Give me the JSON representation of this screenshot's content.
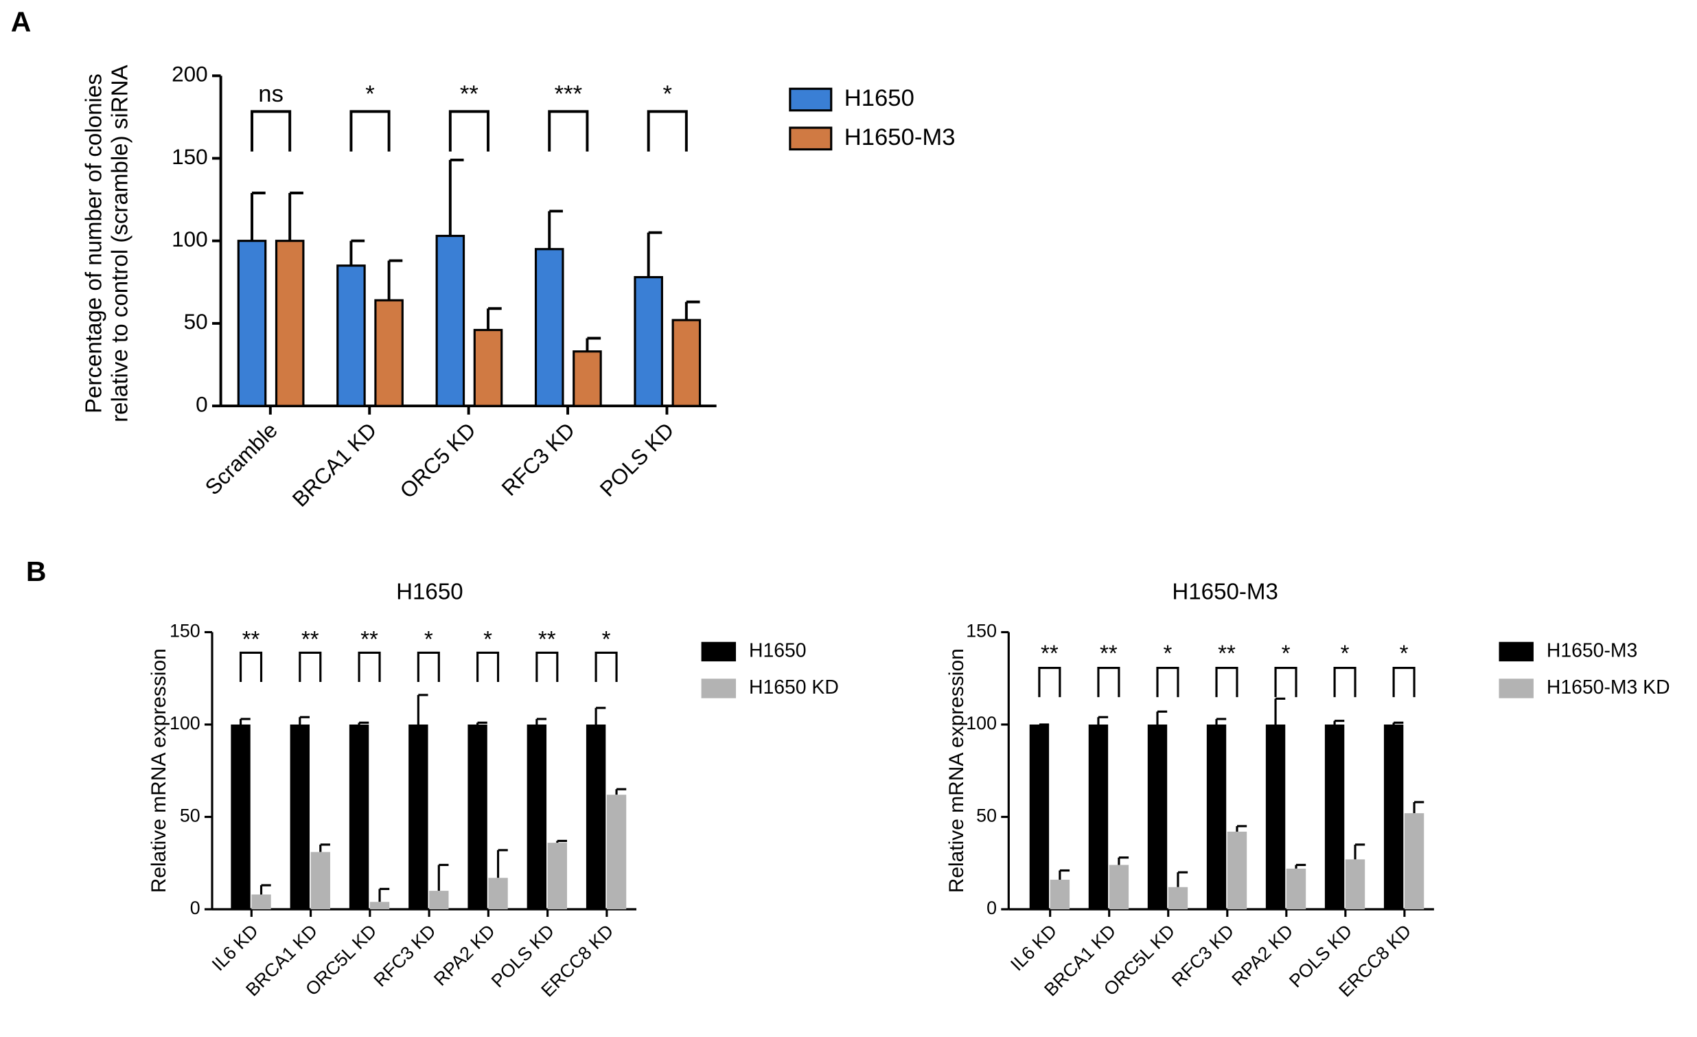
{
  "chart_data": [
    {
      "type": "bar",
      "panel": "A",
      "ylabel": [
        "Percentage of number of colonies",
        "relative to control (scramble) siRNA"
      ],
      "categories": [
        "Scramble",
        "BRCA1 KD",
        "ORC5 KD",
        "RFC3 KD",
        "POLS KD"
      ],
      "series": [
        {
          "name": "H1650",
          "color": "#3a7fd5",
          "values": [
            100,
            85,
            103,
            95,
            78
          ],
          "errors": [
            29,
            15,
            46,
            23,
            27
          ]
        },
        {
          "name": "H1650-M3",
          "color": "#d07a43",
          "values": [
            100,
            64,
            46,
            33,
            52
          ],
          "errors": [
            29,
            24,
            13,
            8,
            11
          ]
        }
      ],
      "significance": [
        "ns",
        "*",
        "**",
        "***",
        "*"
      ],
      "ylim": [
        0,
        200
      ],
      "yticks": [
        0,
        50,
        100,
        150,
        200
      ]
    },
    {
      "type": "bar",
      "panel": "B",
      "title": "H1650",
      "ylabel": [
        "Relative mRNA expression"
      ],
      "categories": [
        "IL6 KD",
        "BRCA1 KD",
        "ORC5L KD",
        "RFC3 KD",
        "RPA2 KD",
        "POLS KD",
        "ERCC8 KD"
      ],
      "series": [
        {
          "name": "H1650",
          "color": "#000000",
          "values": [
            100,
            100,
            100,
            100,
            100,
            100,
            100
          ],
          "errors": [
            3,
            4,
            1,
            16,
            1,
            3,
            9
          ]
        },
        {
          "name": "H1650 KD",
          "color": "#b3b3b3",
          "values": [
            8,
            31,
            4,
            10,
            17,
            36,
            62
          ],
          "errors": [
            5,
            4,
            7,
            14,
            15,
            1,
            3
          ]
        }
      ],
      "significance": [
        "**",
        "**",
        "**",
        "*",
        "*",
        "**",
        "*"
      ],
      "ylim": [
        0,
        150
      ],
      "yticks": [
        0,
        50,
        100,
        150
      ]
    },
    {
      "type": "bar",
      "title": "H1650-M3",
      "ylabel": [
        "Relative mRNA expression"
      ],
      "categories": [
        "IL6 KD",
        "BRCA1 KD",
        "ORC5L KD",
        "RFC3 KD",
        "RPA2 KD",
        "POLS KD",
        "ERCC8 KD"
      ],
      "series": [
        {
          "name": "H1650-M3",
          "color": "#000000",
          "values": [
            100,
            100,
            100,
            100,
            100,
            100,
            100
          ],
          "errors": [
            0,
            4,
            7,
            3,
            14,
            2,
            1
          ]
        },
        {
          "name": "H1650-M3 KD",
          "color": "#b3b3b3",
          "values": [
            16,
            24,
            12,
            42,
            22,
            27,
            52
          ],
          "errors": [
            5,
            4,
            8,
            3,
            2,
            8,
            6
          ]
        }
      ],
      "significance": [
        "**",
        "**",
        "*",
        "**",
        "*",
        "*",
        "*"
      ],
      "ylim": [
        0,
        150
      ],
      "yticks": [
        0,
        50,
        100,
        150
      ]
    }
  ]
}
